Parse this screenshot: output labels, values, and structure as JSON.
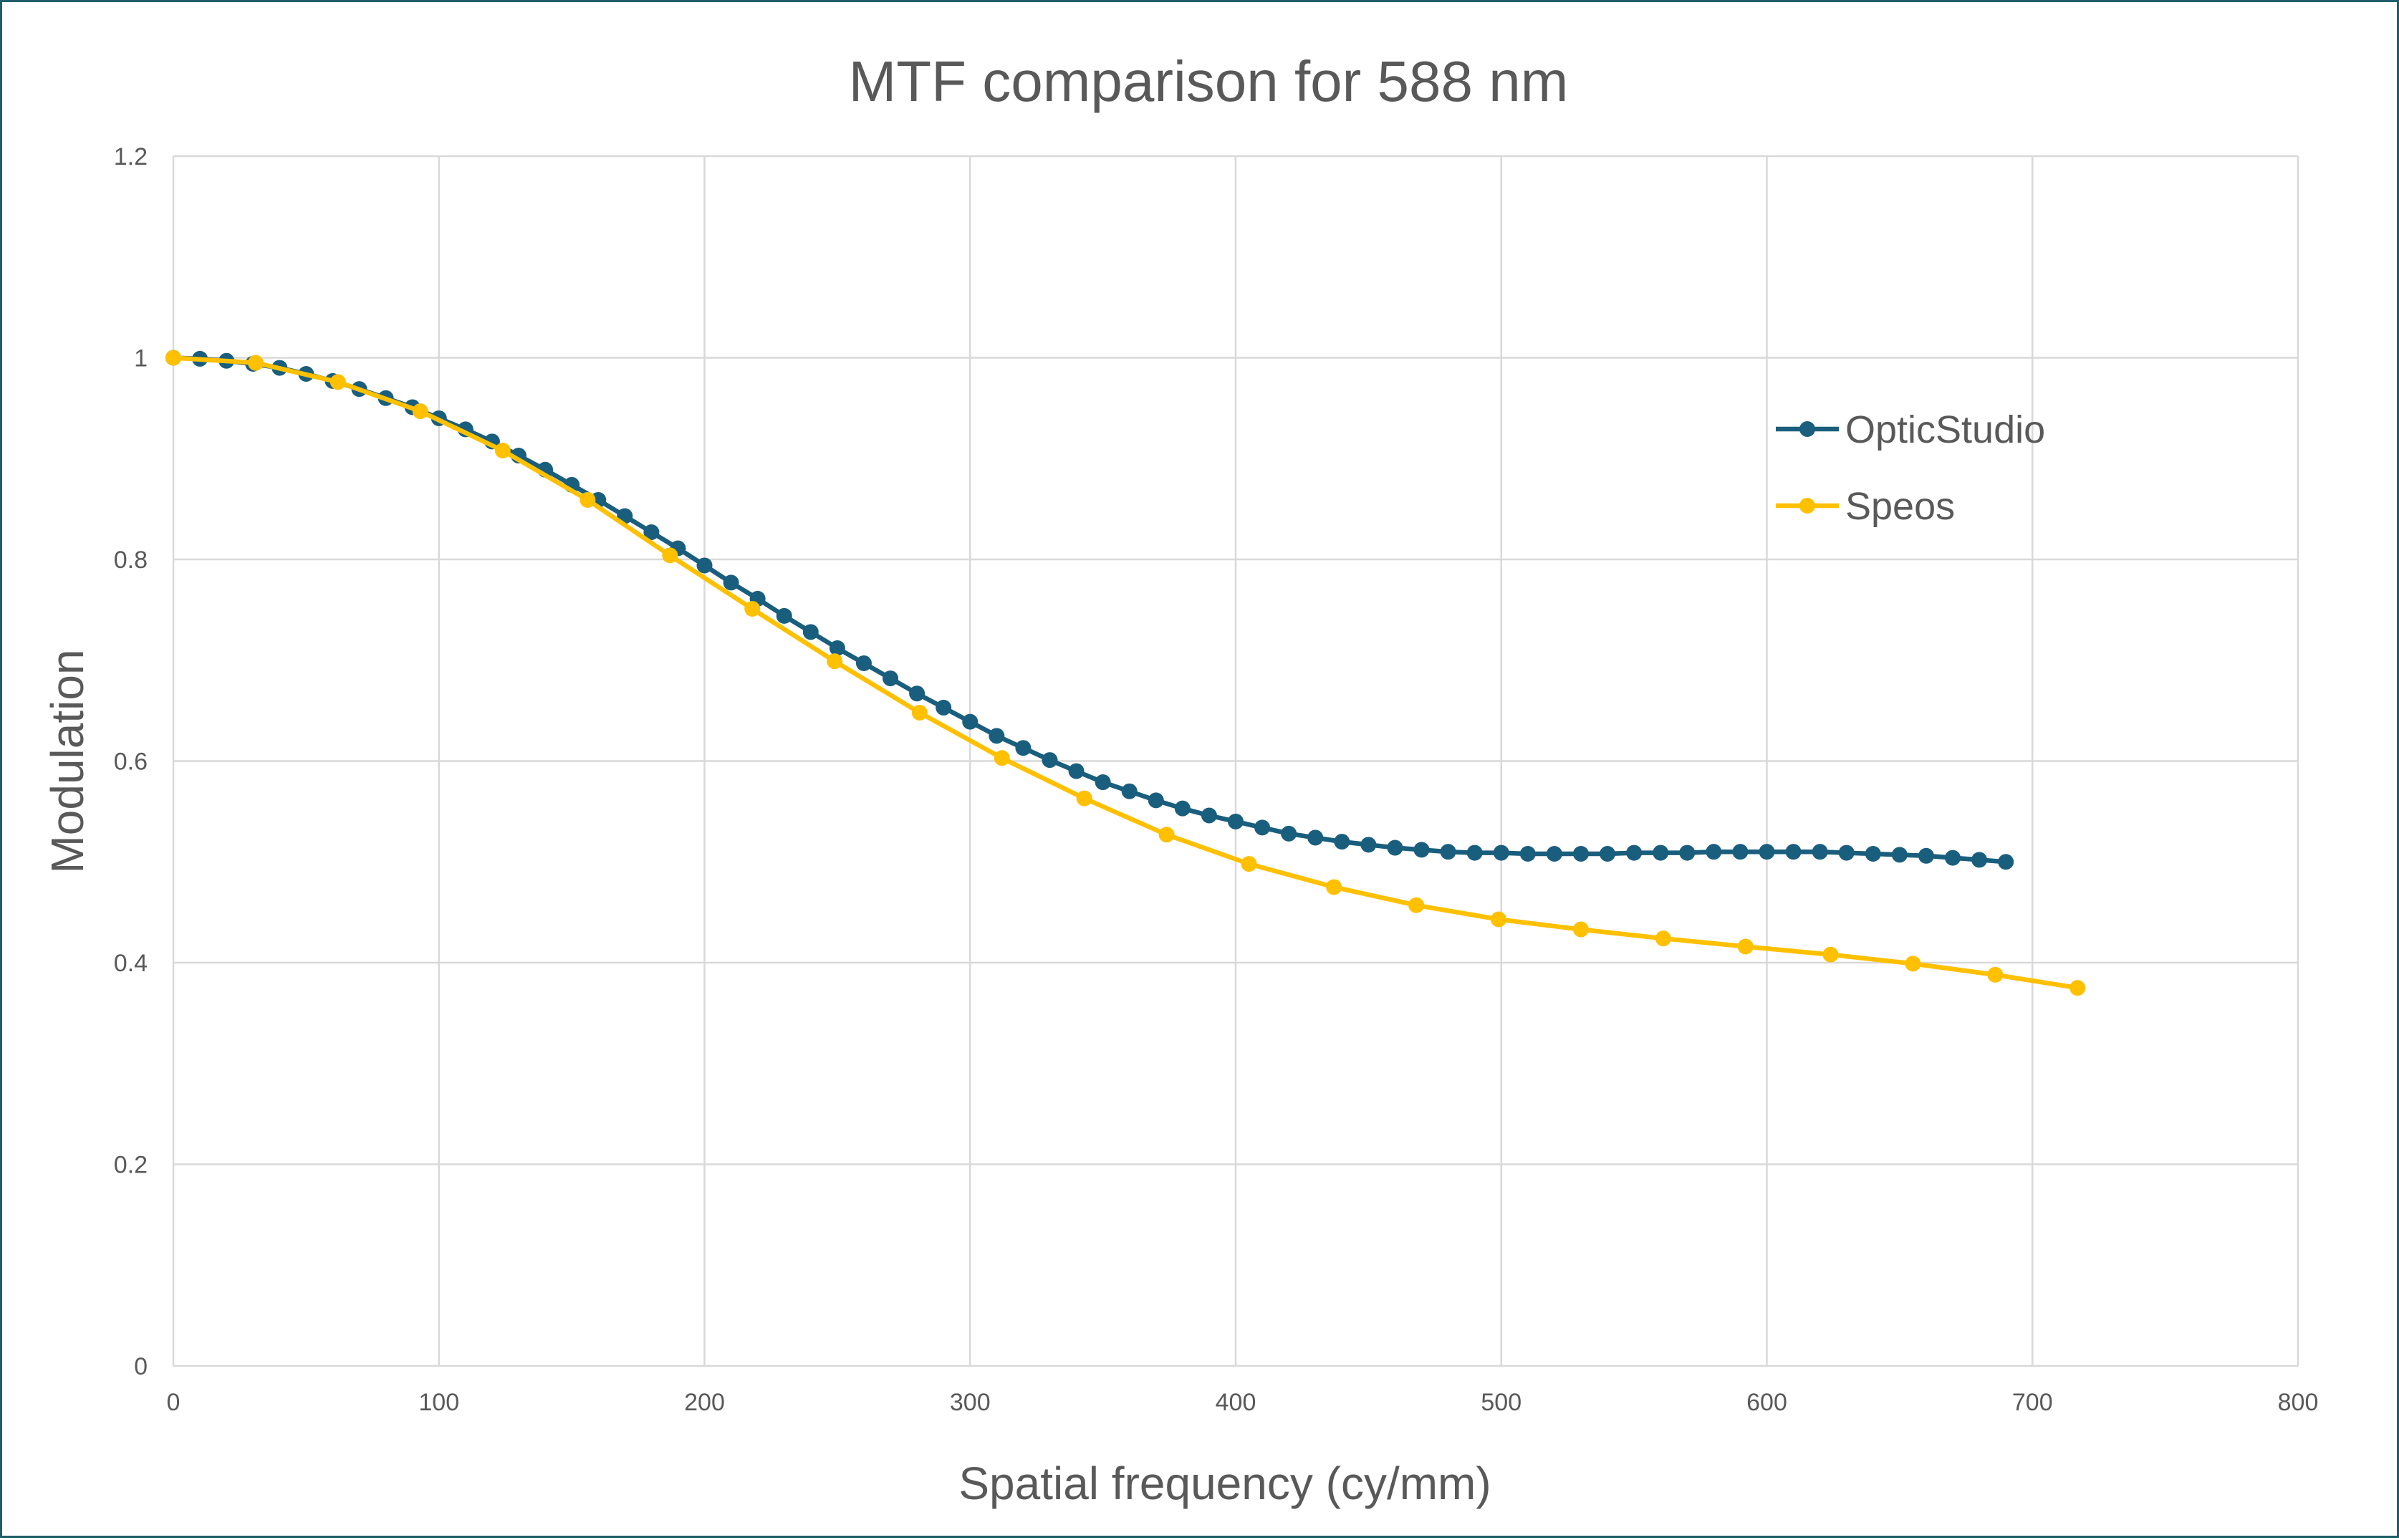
{
  "chart_data": {
    "type": "line",
    "title": "MTF comparison for 588 nm",
    "xlabel": "Spatial frequency (cy/mm)",
    "ylabel": "Modulation",
    "xlim": [
      0,
      800
    ],
    "ylim": [
      0,
      1.2
    ],
    "x_ticks": [
      "0",
      "100",
      "200",
      "300",
      "400",
      "500",
      "600",
      "700",
      "800"
    ],
    "y_ticks": [
      "0",
      "0.2",
      "0.4",
      "0.6",
      "0.8",
      "1",
      "1.2"
    ],
    "grid": true,
    "legend_position": "right",
    "series": [
      {
        "name": "OpticStudio",
        "color": "#1a5e7e",
        "x": [
          0,
          10,
          20,
          30,
          40,
          50,
          60,
          70,
          80,
          90,
          100,
          110,
          120,
          130,
          140,
          150,
          160,
          170,
          180,
          190,
          200,
          210,
          220,
          230,
          240,
          250,
          260,
          270,
          280,
          290,
          300,
          310,
          320,
          330,
          340,
          350,
          360,
          370,
          380,
          390,
          400,
          410,
          420,
          430,
          440,
          450,
          460,
          470,
          480,
          490,
          500,
          510,
          520,
          530,
          540,
          550,
          560,
          570,
          580,
          590,
          600,
          610,
          620,
          630,
          640,
          650,
          660,
          670,
          680,
          690
        ],
        "y": [
          1.0,
          0.999,
          0.997,
          0.994,
          0.99,
          0.984,
          0.977,
          0.969,
          0.96,
          0.951,
          0.94,
          0.929,
          0.917,
          0.903,
          0.889,
          0.874,
          0.859,
          0.843,
          0.827,
          0.811,
          0.794,
          0.777,
          0.761,
          0.744,
          0.728,
          0.712,
          0.697,
          0.682,
          0.667,
          0.653,
          0.639,
          0.625,
          0.613,
          0.601,
          0.59,
          0.579,
          0.57,
          0.561,
          0.553,
          0.546,
          0.54,
          0.534,
          0.528,
          0.524,
          0.52,
          0.517,
          0.514,
          0.512,
          0.51,
          0.509,
          0.509,
          0.508,
          0.508,
          0.508,
          0.508,
          0.509,
          0.509,
          0.509,
          0.51,
          0.51,
          0.51,
          0.51,
          0.51,
          0.509,
          0.508,
          0.507,
          0.506,
          0.504,
          0.502,
          0.5
        ]
      },
      {
        "name": "Speos",
        "color": "#ffc000",
        "x": [
          0,
          31,
          62,
          93,
          124,
          156,
          187,
          218,
          249,
          281,
          312,
          343,
          374,
          405,
          437,
          468,
          499,
          530,
          561,
          592,
          624,
          655,
          686,
          717
        ],
        "y": [
          1.0,
          0.995,
          0.976,
          0.947,
          0.908,
          0.859,
          0.804,
          0.751,
          0.699,
          0.648,
          0.603,
          0.563,
          0.527,
          0.498,
          0.475,
          0.457,
          0.443,
          0.433,
          0.424,
          0.416,
          0.408,
          0.399,
          0.388,
          0.375
        ]
      }
    ]
  }
}
